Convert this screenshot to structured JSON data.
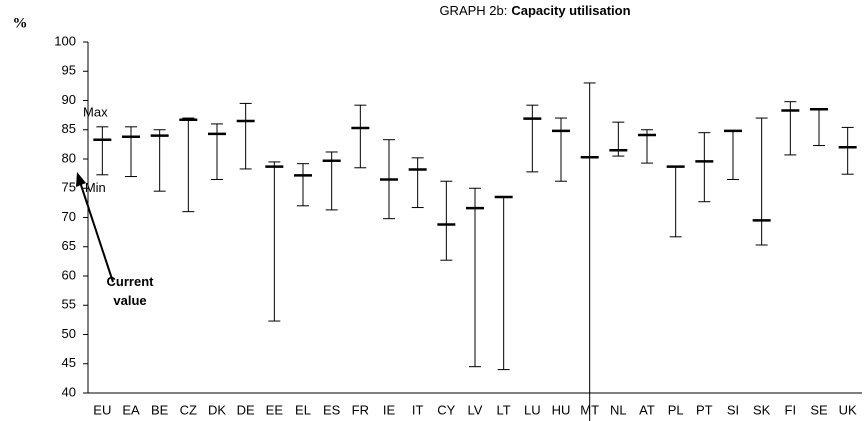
{
  "chart_data": {
    "type": "hilo",
    "title": "GRAPH 2b:",
    "title_bold": "Capacity utilisation",
    "y_label": "%",
    "categories": [
      "EU",
      "EA",
      "BE",
      "CZ",
      "DK",
      "DE",
      "EE",
      "EL",
      "ES",
      "FR",
      "IE",
      "IT",
      "CY",
      "LV",
      "LT",
      "LU",
      "HU",
      "MT",
      "NL",
      "AT",
      "PL",
      "PT",
      "SI",
      "SK",
      "FI",
      "SE",
      "UK"
    ],
    "series": [
      {
        "name": "Max",
        "color": "#000000",
        "values": [
          85.5,
          85.5,
          85,
          87,
          86,
          89.5,
          79.5,
          79.2,
          81.2,
          89.2,
          83.3,
          80.2,
          76.2,
          75,
          73.5,
          89.2,
          87,
          93,
          86.3,
          85,
          78.7,
          84.5,
          84.8,
          87,
          89.8,
          88.6,
          85.4
        ]
      },
      {
        "name": "Min",
        "color": "#000000",
        "values": [
          77.3,
          77,
          74.5,
          71,
          76.5,
          78.3,
          52.3,
          72,
          71.3,
          78.5,
          69.8,
          71.7,
          62.7,
          44.5,
          44,
          77.8,
          76.2,
          35,
          80.5,
          79.3,
          66.7,
          72.7,
          76.5,
          65.3,
          80.7,
          82.3,
          77.4
        ]
      },
      {
        "name": "Current value",
        "color": "#000000",
        "values": [
          83.3,
          83.8,
          84,
          86.7,
          84.3,
          86.5,
          78.7,
          77.2,
          79.7,
          85.3,
          76.5,
          78.2,
          68.8,
          71.6,
          73.5,
          86.9,
          84.8,
          80.3,
          81.5,
          84.1,
          78.7,
          79.6,
          84.8,
          69.5,
          88.3,
          88.5,
          82
        ]
      }
    ],
    "ylim": [
      40,
      100
    ],
    "yticks": [
      40,
      45,
      50,
      55,
      60,
      65,
      70,
      75,
      80,
      85,
      90,
      95,
      100
    ]
  }
}
